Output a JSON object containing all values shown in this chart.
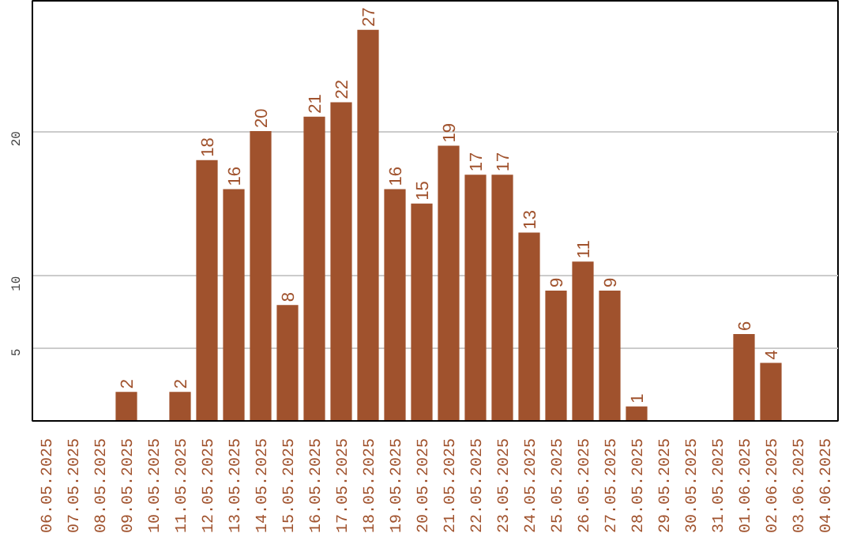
{
  "chart_data": {
    "type": "bar",
    "categories": [
      "06.05.2025",
      "07.05.2025",
      "08.05.2025",
      "09.05.2025",
      "10.05.2025",
      "11.05.2025",
      "12.05.2025",
      "13.05.2025",
      "14.05.2025",
      "15.05.2025",
      "16.05.2025",
      "17.05.2025",
      "18.05.2025",
      "19.05.2025",
      "20.05.2025",
      "21.05.2025",
      "22.05.2025",
      "23.05.2025",
      "24.05.2025",
      "25.05.2025",
      "26.05.2025",
      "27.05.2025",
      "28.05.2025",
      "29.05.2025",
      "30.05.2025",
      "31.05.2025",
      "01.06.2025",
      "02.06.2025",
      "03.06.2025",
      "04.06.2025"
    ],
    "values": [
      0,
      0,
      0,
      2,
      0,
      2,
      18,
      16,
      20,
      8,
      21,
      22,
      27,
      16,
      15,
      19,
      17,
      17,
      13,
      9,
      11,
      9,
      1,
      0,
      0,
      0,
      6,
      4,
      0,
      0
    ],
    "value_labels": [
      null,
      null,
      null,
      "2",
      null,
      "2",
      "18",
      "16",
      "20",
      "8",
      "21",
      "22",
      "27",
      "16",
      "15",
      "19",
      "17",
      "17",
      "13",
      "9",
      "11",
      "9",
      "1",
      null,
      null,
      null,
      "6",
      "4",
      null,
      null
    ],
    "color": "#a0522d",
    "ylim": [
      0,
      29
    ],
    "yticks": [
      5,
      10,
      20
    ],
    "grid": "y"
  }
}
